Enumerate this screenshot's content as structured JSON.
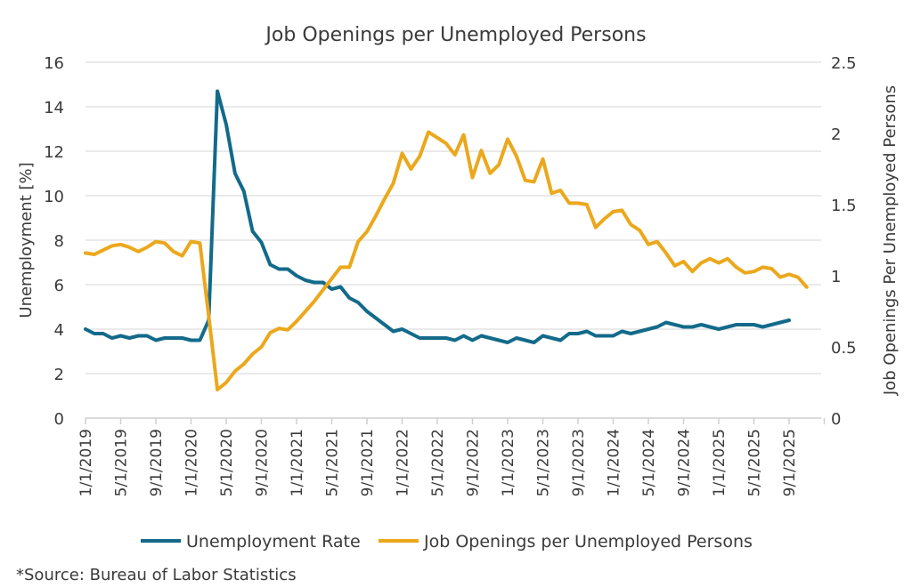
{
  "chart_data": {
    "type": "line",
    "title": "Job Openings per Unemployed Persons",
    "ylabel_left": "Unemployment [%]",
    "ylabel_right": "Job Openings Per Unemployed Persons",
    "ylim_left": [
      0,
      16
    ],
    "ylim_right": [
      0,
      2.5
    ],
    "yticks_left": [
      "0",
      "2",
      "4",
      "6",
      "8",
      "10",
      "12",
      "14",
      "16"
    ],
    "yticks_right": [
      "0",
      "0.5",
      "1",
      "1.5",
      "2",
      "2.5"
    ],
    "xticks": [
      "1/1/2019",
      "5/1/2019",
      "9/1/2019",
      "1/1/2020",
      "5/1/2020",
      "9/1/2020",
      "1/1/2021",
      "5/1/2021",
      "9/1/2021",
      "1/1/2022",
      "5/1/2022",
      "9/1/2022",
      "1/1/2023",
      "5/1/2023",
      "9/1/2023",
      "1/1/2024",
      "5/1/2024",
      "9/1/2024",
      "1/1/2025",
      "5/1/2025",
      "9/1/2025"
    ],
    "xlim": [
      "2019-01",
      "2025-12"
    ],
    "grid": true,
    "legend_position": "bottom",
    "series": [
      {
        "name": "Unemployment Rate",
        "axis": "left",
        "color": "#136a8a",
        "x_start": "2019-01",
        "frequency": "monthly",
        "values": [
          4.0,
          3.8,
          3.8,
          3.6,
          3.7,
          3.6,
          3.7,
          3.7,
          3.5,
          3.6,
          3.6,
          3.6,
          3.5,
          3.5,
          4.4,
          14.7,
          13.2,
          11.0,
          10.2,
          8.4,
          7.9,
          6.9,
          6.7,
          6.7,
          6.4,
          6.2,
          6.1,
          6.1,
          5.8,
          5.9,
          5.4,
          5.2,
          4.8,
          4.5,
          4.2,
          3.9,
          4.0,
          3.8,
          3.6,
          3.6,
          3.6,
          3.6,
          3.5,
          3.7,
          3.5,
          3.7,
          3.6,
          3.5,
          3.4,
          3.6,
          3.5,
          3.4,
          3.7,
          3.6,
          3.5,
          3.8,
          3.8,
          3.9,
          3.7,
          3.7,
          3.7,
          3.9,
          3.8,
          3.9,
          4.0,
          4.1,
          4.3,
          4.2,
          4.1,
          4.1,
          4.2,
          4.1,
          4.0,
          4.1,
          4.2,
          4.2,
          4.2,
          4.1,
          4.2,
          4.3,
          4.4
        ]
      },
      {
        "name": "Job Openings per Unemployed Persons",
        "axis": "right",
        "color": "#eba81c",
        "x_start": "2019-01",
        "frequency": "monthly",
        "values": [
          1.16,
          1.15,
          1.18,
          1.21,
          1.22,
          1.2,
          1.17,
          1.2,
          1.24,
          1.23,
          1.17,
          1.14,
          1.24,
          1.23,
          0.72,
          0.2,
          0.25,
          0.33,
          0.38,
          0.45,
          0.5,
          0.6,
          0.63,
          0.62,
          0.68,
          0.75,
          0.82,
          0.9,
          0.98,
          1.06,
          1.06,
          1.24,
          1.31,
          1.42,
          1.54,
          1.65,
          1.86,
          1.75,
          1.84,
          2.01,
          1.97,
          1.93,
          1.85,
          1.99,
          1.69,
          1.88,
          1.72,
          1.78,
          1.96,
          1.84,
          1.67,
          1.66,
          1.82,
          1.58,
          1.6,
          1.51,
          1.51,
          1.5,
          1.34,
          1.4,
          1.45,
          1.46,
          1.36,
          1.32,
          1.22,
          1.24,
          1.16,
          1.07,
          1.1,
          1.03,
          1.09,
          1.12,
          1.09,
          1.12,
          1.06,
          1.02,
          1.03,
          1.06,
          1.05,
          0.99,
          1.01,
          0.99,
          0.92
        ]
      }
    ]
  },
  "source_note": "*Source: Bureau of Labor Statistics"
}
